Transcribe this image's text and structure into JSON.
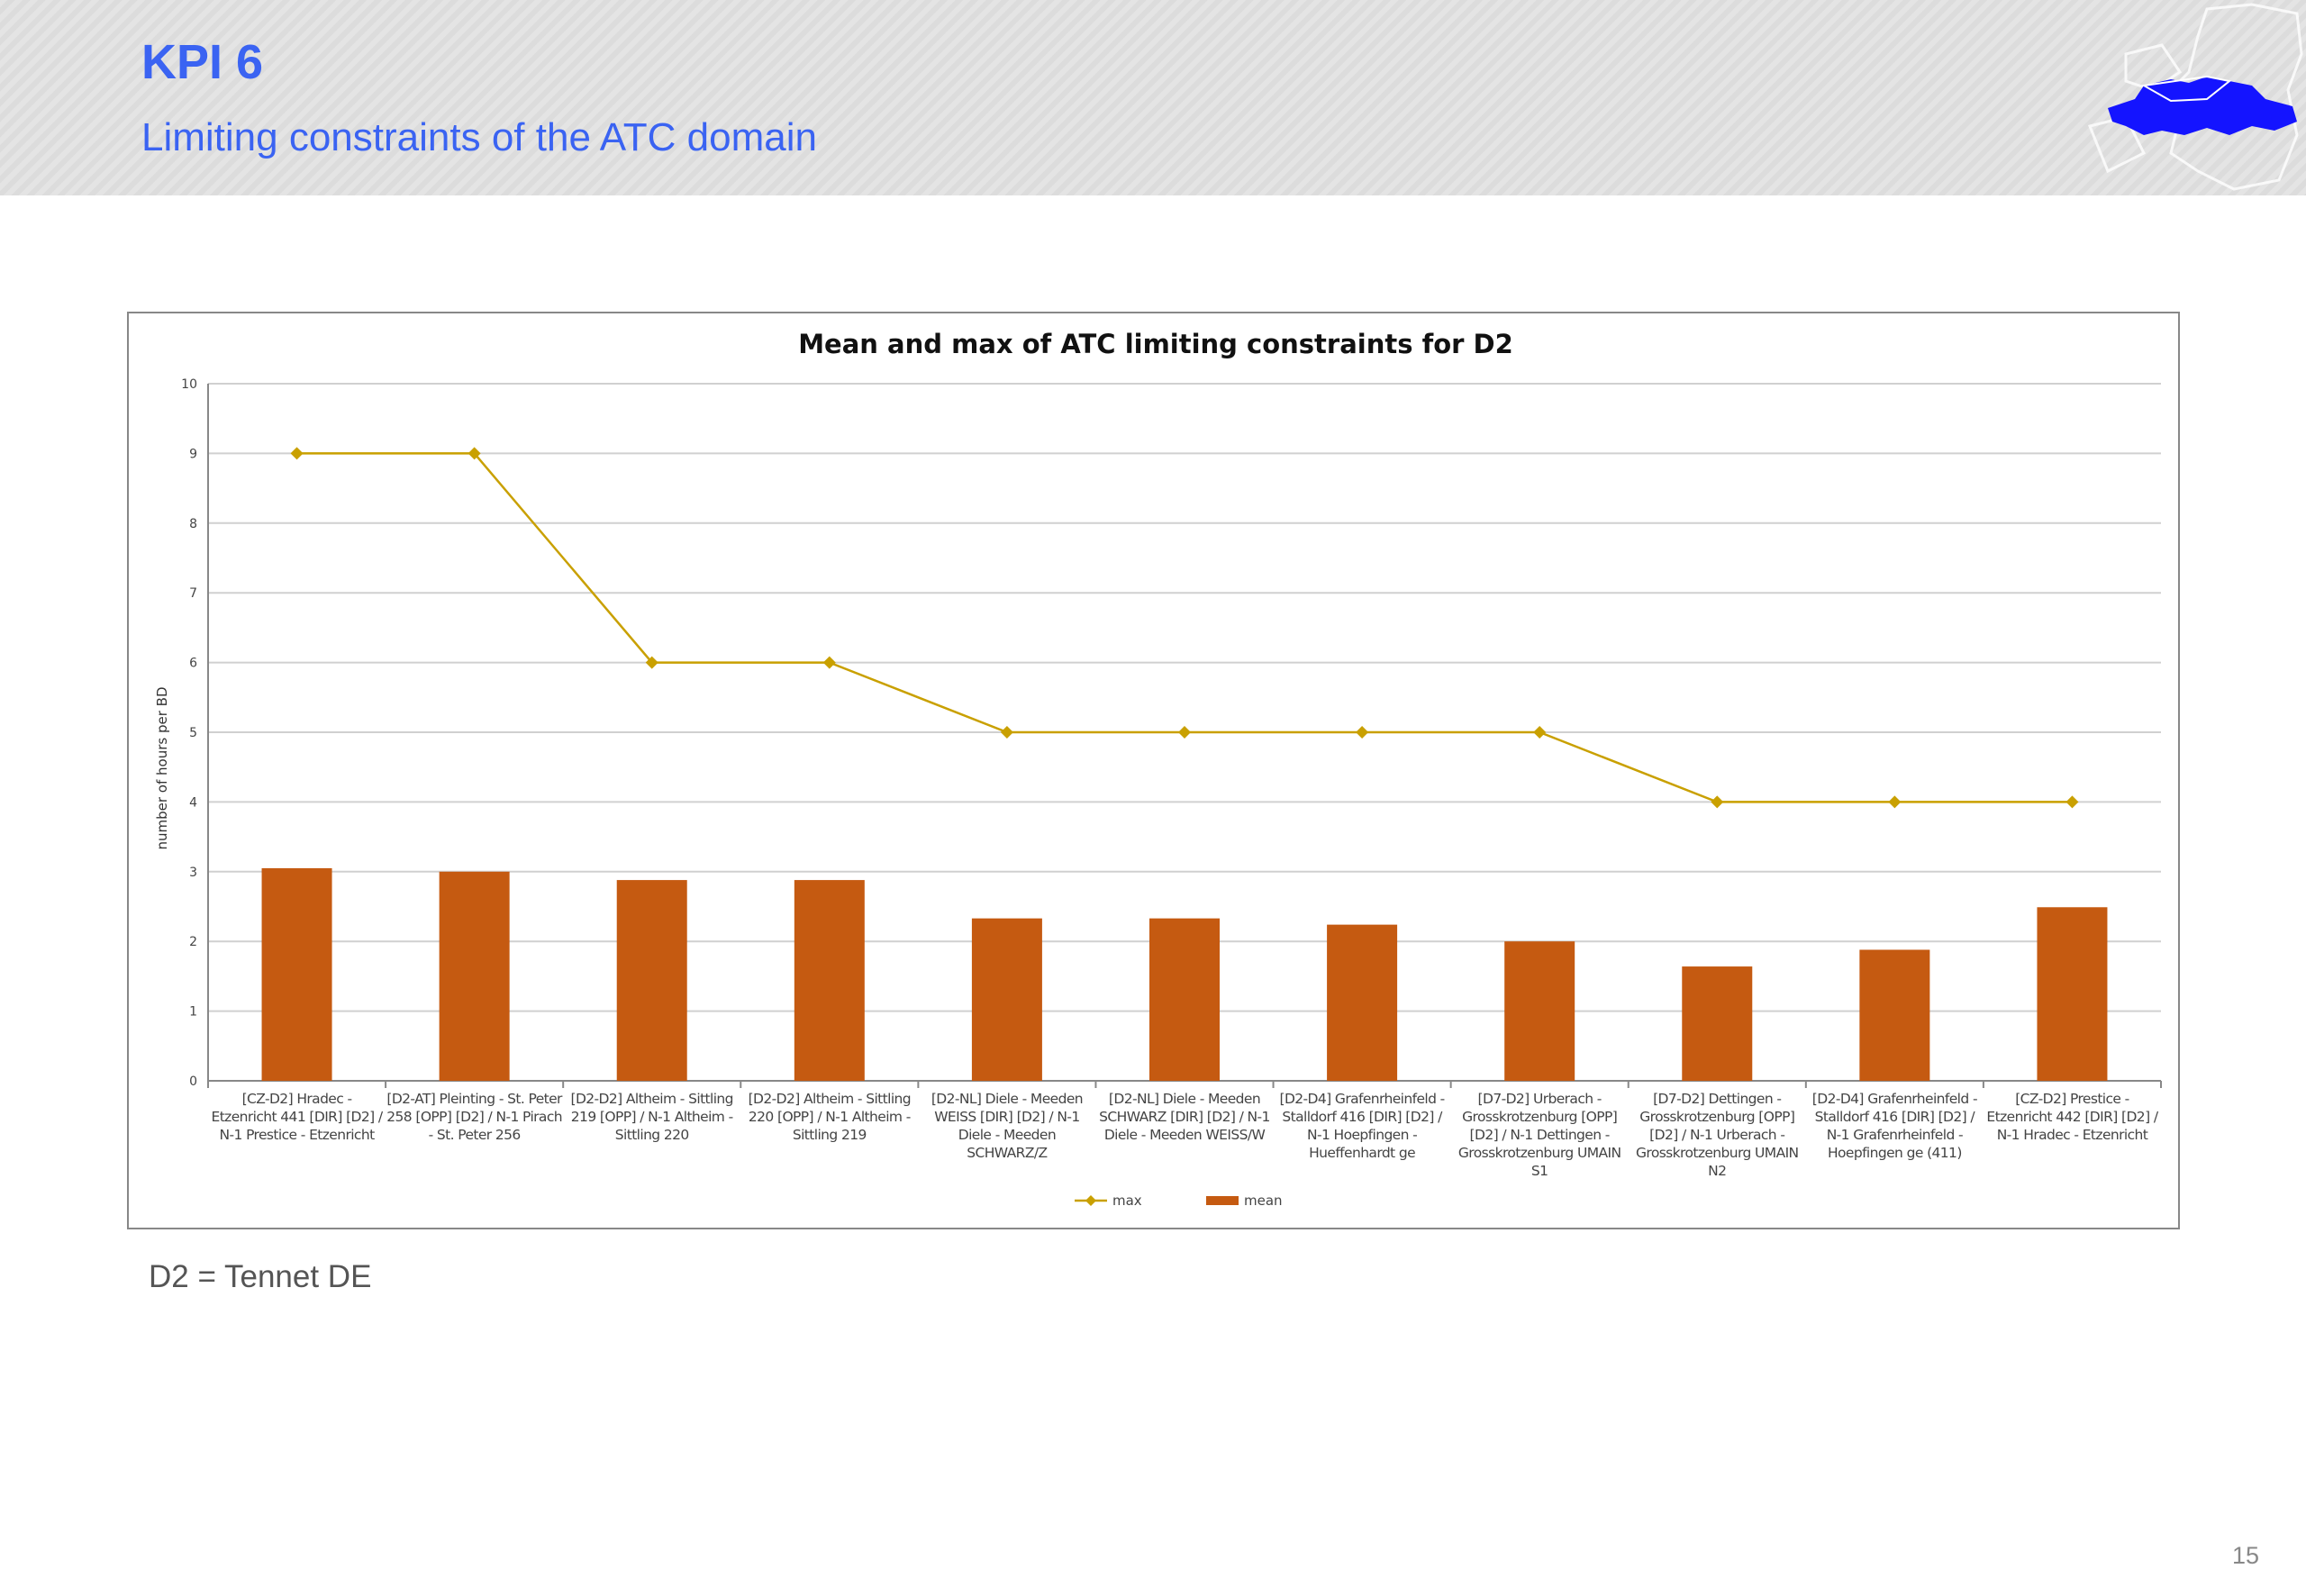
{
  "header": {
    "title": "KPI 6",
    "subtitle": "Limiting constraints of the ATC domain"
  },
  "note": "D2 = Tennet DE",
  "page_number": "15",
  "colors": {
    "title": "#3a63f2",
    "bar": "#c55a11",
    "line": "#c9a000"
  },
  "chart_data": {
    "type": "bar",
    "title": "Mean and max of ATC limiting constraints for D2",
    "xlabel": "",
    "ylabel": "number of hours per BD",
    "ylim": [
      0,
      10
    ],
    "yticks": [
      "0",
      "1",
      "2",
      "3",
      "4",
      "5",
      "6",
      "7",
      "8",
      "9",
      "10"
    ],
    "grid": true,
    "legend": "bottom",
    "categories": [
      "[CZ-D2] Hradec - Etzenricht 441 [DIR] [D2] / N-1 Prestice - Etzenricht",
      "[D2-AT] Pleinting - St. Peter 258 [OPP] [D2] / N-1 Pirach - St. Peter 256",
      "[D2-D2] Altheim - Sittling 219 [OPP] / N-1 Altheim - Sittling 220",
      "[D2-D2] Altheim - Sittling 220 [OPP] / N-1 Altheim - Sittling 219",
      "[D2-NL] Diele - Meeden WEISS [DIR] [D2] / N-1 Diele - Meeden SCHWARZ/Z",
      "[D2-NL] Diele - Meeden SCHWARZ [DIR] [D2] / N-1 Diele - Meeden WEISS/W",
      "[D2-D4] Grafenrheinfeld - Stalldorf 416 [DIR] [D2] / N-1 Hoepfingen - Hueffenhardt ge",
      "[D7-D2] Urberach - Grosskrotzenburg [OPP] [D2] / N-1 Dettingen - Grosskrotzenburg UMAIN S1",
      "[D7-D2] Dettingen - Grosskrotzenburg [OPP] [D2] / N-1 Urberach - Grosskrotzenburg UMAIN N2",
      "[D2-D4] Grafenrheinfeld - Stalldorf 416 [DIR] [D2] / N-1 Grafenrheinfeld - Hoepfingen ge (411)",
      "[CZ-D2] Prestice - Etzenricht 442 [DIR] [D2] / N-1 Hradec - Etzenricht"
    ],
    "series": [
      {
        "name": "max",
        "type": "line",
        "values": [
          9,
          9,
          6,
          6,
          5,
          5,
          5,
          5,
          4,
          4,
          4
        ]
      },
      {
        "name": "mean",
        "type": "bar",
        "values": [
          3.05,
          3.0,
          2.88,
          2.88,
          2.33,
          2.33,
          2.24,
          2.0,
          1.64,
          1.88,
          2.49
        ]
      }
    ]
  }
}
